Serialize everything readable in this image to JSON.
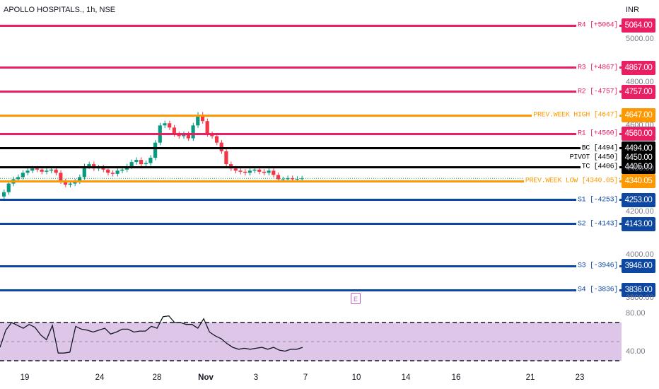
{
  "header": {
    "symbol": "APOLLO HOSPITALS., 1h, NSE",
    "currency": "INR"
  },
  "colors": {
    "resistance": "#e91e63",
    "support": "#0d47a1",
    "pivot": "#000000",
    "prev_week": "#ff9800",
    "rsi_fill": "#d1b3e0",
    "rsi_line": "#131722",
    "up_candle": "#089981",
    "down_candle": "#f23645"
  },
  "levels": [
    {
      "id": "r4",
      "label": "R4 [+5064]",
      "value": 5064,
      "tag": "5064.00",
      "color": "#e91e63"
    },
    {
      "id": "r3",
      "label": "R3 [+4867]",
      "value": 4867,
      "tag": "4867.00",
      "color": "#e91e63"
    },
    {
      "id": "r2",
      "label": "R2 [-4757]",
      "value": 4757,
      "tag": "4757.00",
      "color": "#e91e63"
    },
    {
      "id": "pwh",
      "label": "PREV.WEEK HIGH [4647]",
      "value": 4647,
      "tag": "4647.00",
      "color": "#ff9800"
    },
    {
      "id": "r1",
      "label": "R1 [+4560]",
      "value": 4560,
      "tag": "4560.00",
      "color": "#e91e63"
    },
    {
      "id": "bc",
      "label": "BC [4494]",
      "value": 4494,
      "tag": "4494.00",
      "color": "#000000"
    },
    {
      "id": "pivot",
      "label": "PIVOT [4450]",
      "value": 4450,
      "tag": "4450.00",
      "color": "#000000",
      "no_line": true
    },
    {
      "id": "tc",
      "label": "TC [4406]",
      "value": 4406,
      "tag": "4406.00",
      "color": "#000000"
    },
    {
      "id": "pwl",
      "label": "PREV.WEEK LOW [4340.05]",
      "value": 4340.05,
      "tag": "4340.05",
      "color": "#ff9800"
    },
    {
      "id": "s1",
      "label": "S1 [-4253]",
      "value": 4253,
      "tag": "4253.00",
      "color": "#0d47a1"
    },
    {
      "id": "s2",
      "label": "S2 [-4143]",
      "value": 4143,
      "tag": "4143.00",
      "color": "#0d47a1"
    },
    {
      "id": "s3",
      "label": "S3 [-3946]",
      "value": 3946,
      "tag": "3946.00",
      "color": "#0d47a1"
    },
    {
      "id": "s4",
      "label": "S4 [-3836]",
      "value": 3836,
      "tag": "3836.00",
      "color": "#0d47a1"
    }
  ],
  "price_axis_ticks": [
    "5000.00",
    "4800.00",
    "4600.00",
    "4400.00",
    "4200.00",
    "4000.00",
    "3800.00"
  ],
  "rsi_axis_ticks": [
    "80.00",
    "40.00"
  ],
  "date_ticks": [
    {
      "label": "19",
      "bold": false
    },
    {
      "label": "24",
      "bold": false
    },
    {
      "label": "28",
      "bold": false
    },
    {
      "label": "Nov",
      "bold": true
    },
    {
      "label": "3",
      "bold": false
    },
    {
      "label": "7",
      "bold": false
    },
    {
      "label": "10",
      "bold": false
    },
    {
      "label": "14",
      "bold": false
    },
    {
      "label": "16",
      "bold": false
    },
    {
      "label": "21",
      "bold": false
    },
    {
      "label": "23",
      "bold": false
    }
  ],
  "event_icon": "E",
  "chart_data": {
    "type": "line",
    "price_range": [
      3780,
      5120
    ],
    "rsi_range": [
      20,
      100
    ],
    "rsi_levels": [
      70,
      50,
      30
    ],
    "candles_close": [
      4290,
      4330,
      4350,
      4360,
      4380,
      4390,
      4400,
      4395,
      4385,
      4390,
      4395,
      4380,
      4340,
      4325,
      4330,
      4340,
      4360,
      4410,
      4420,
      4400,
      4405,
      4395,
      4380,
      4375,
      4390,
      4395,
      4410,
      4430,
      4440,
      4420,
      4425,
      4450,
      4520,
      4600,
      4610,
      4590,
      4560,
      4550,
      4560,
      4540,
      4600,
      4650,
      4620,
      4560,
      4550,
      4520,
      4480,
      4420,
      4400,
      4390,
      4385,
      4380,
      4390,
      4395,
      4385,
      4380,
      4390,
      4370,
      4350,
      4350,
      4355,
      4350,
      4352,
      4354
    ],
    "rsi": [
      44,
      62,
      70,
      67,
      64,
      68,
      65,
      57,
      52,
      67,
      38,
      38,
      39,
      66,
      63,
      62,
      60,
      62,
      64,
      58,
      60,
      63,
      63,
      60,
      61,
      61,
      66,
      64,
      76,
      77,
      70,
      70,
      68,
      68,
      64,
      74,
      60,
      56,
      53,
      48,
      44,
      42,
      43,
      42,
      43,
      44,
      42,
      44,
      41,
      40,
      42,
      42,
      44
    ]
  }
}
